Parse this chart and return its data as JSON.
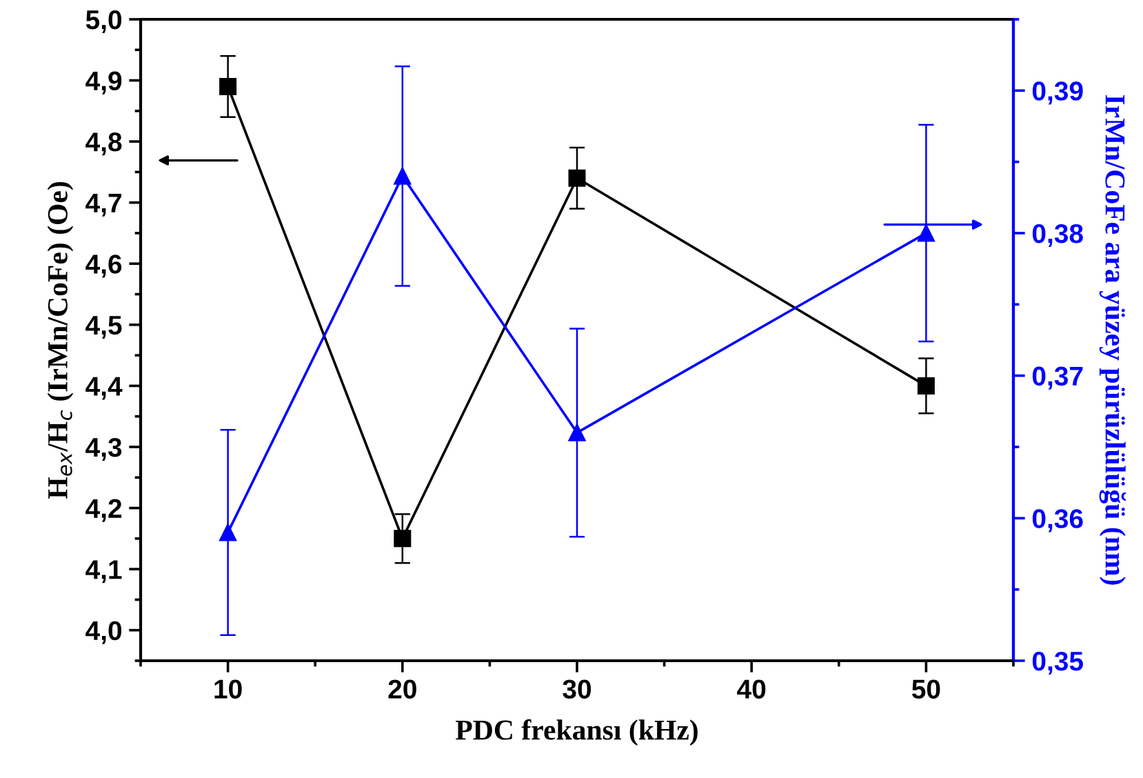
{
  "chart_data": {
    "type": "line",
    "xlabel": "PDC frekansı (kHz)",
    "ylabel": "H$_{ex}$/H$_{c}$ (IrMn/CoFe) (Oe)",
    "y2label": "IrMn/CoFe ara yüzey pürüzlülüğü (nm)",
    "x": [
      10,
      20,
      30,
      50
    ],
    "xlim": [
      5,
      55
    ],
    "xticks": [
      10,
      20,
      30,
      40,
      50
    ],
    "ylim": [
      3.95,
      5.0
    ],
    "yticks": [
      {
        "value": 4.0,
        "label": "4,0"
      },
      {
        "value": 4.1,
        "label": "4,1"
      },
      {
        "value": 4.2,
        "label": "4,2"
      },
      {
        "value": 4.3,
        "label": "4,3"
      },
      {
        "value": 4.4,
        "label": "4,4"
      },
      {
        "value": 4.5,
        "label": "4,5"
      },
      {
        "value": 4.6,
        "label": "4,6"
      },
      {
        "value": 4.7,
        "label": "4,7"
      },
      {
        "value": 4.8,
        "label": "4,8"
      },
      {
        "value": 4.9,
        "label": "4,9"
      },
      {
        "value": 5.0,
        "label": "5,0"
      }
    ],
    "y2lim": [
      0.35,
      0.395
    ],
    "y2ticks": [
      {
        "value": 0.35,
        "label": "0,35"
      },
      {
        "value": 0.36,
        "label": "0,36"
      },
      {
        "value": 0.37,
        "label": "0,37"
      },
      {
        "value": 0.38,
        "label": "0,38"
      },
      {
        "value": 0.39,
        "label": "0,39"
      }
    ],
    "grid": false,
    "legend": false,
    "line_style": "solid",
    "series": [
      {
        "color": "#000000",
        "marker": "square",
        "values": [
          4.89,
          4.15,
          4.74,
          4.4
        ],
        "errors": [
          0.05,
          0.04,
          0.05,
          0.045
        ]
      },
      {
        "color": "#0000ff",
        "marker": "triangle",
        "axis": "y2",
        "values": [
          0.359,
          0.384,
          0.366,
          0.38
        ],
        "errors": [
          0.0072,
          0.0077,
          0.0073,
          0.0076
        ]
      }
    ]
  }
}
